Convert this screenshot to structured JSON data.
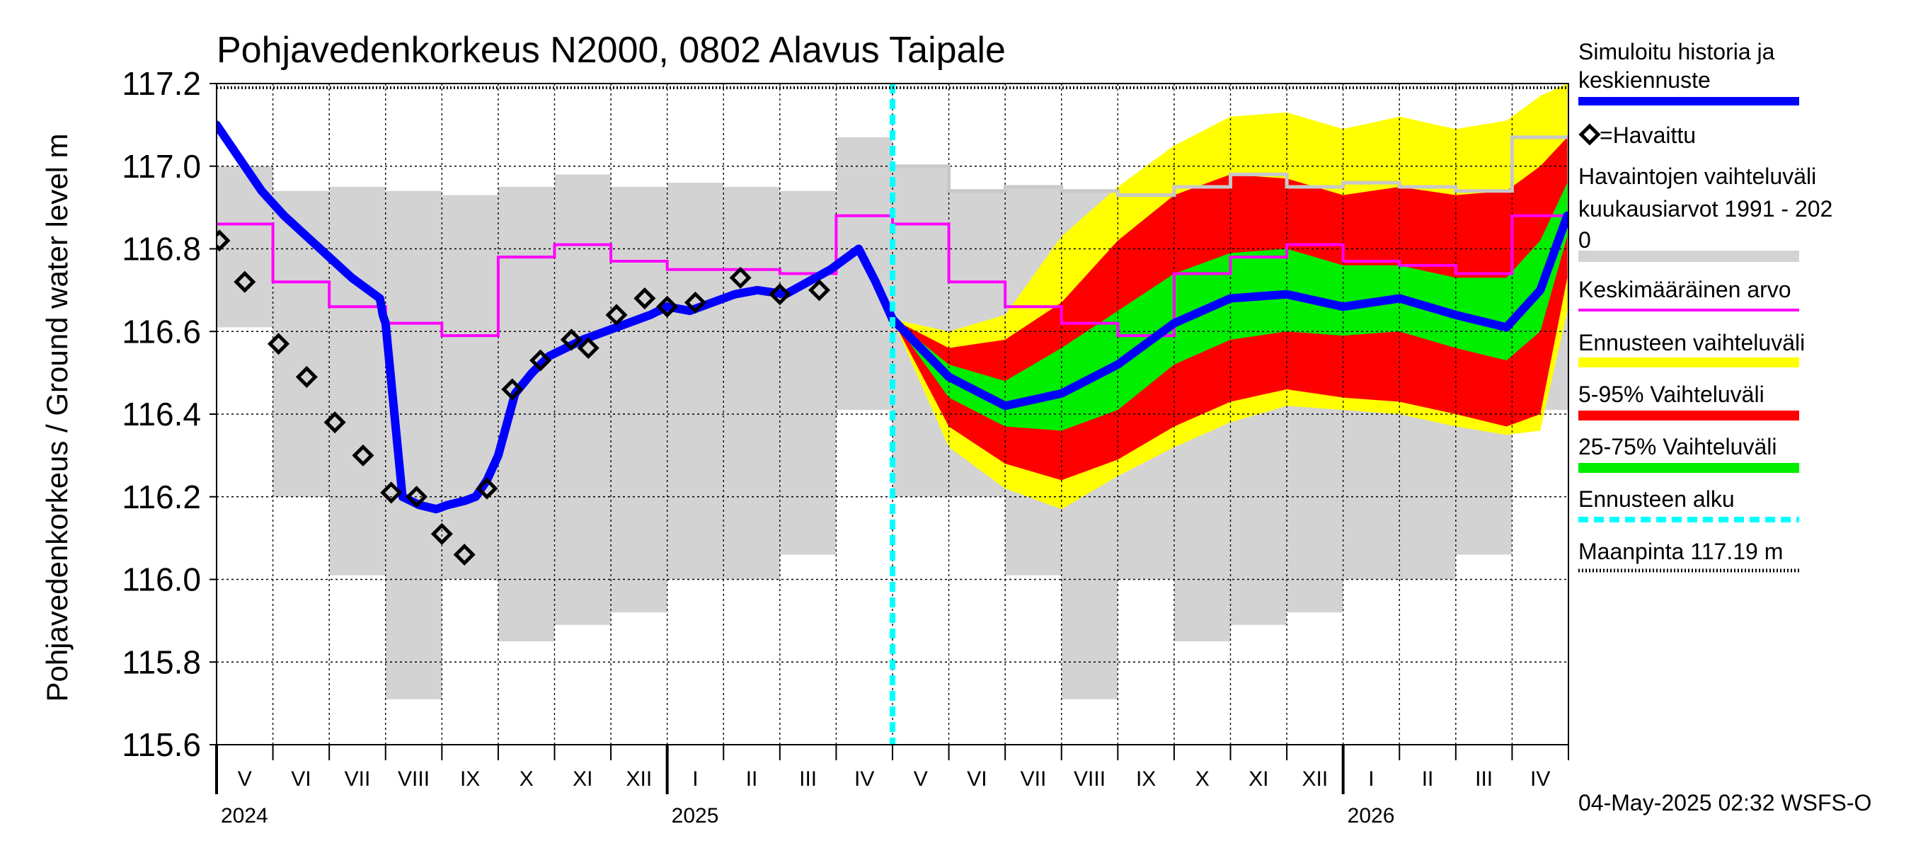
{
  "chart_data": {
    "type": "line",
    "title": "Pohjavedenkorkeus N2000, 0802 Alavus Taipale",
    "ylabel": "Pohjavedenkorkeus / Ground water level   m",
    "ylim": [
      115.6,
      117.2
    ],
    "yticks": [
      "115.6",
      "115.8",
      "116.0",
      "116.2",
      "116.4",
      "116.6",
      "116.8",
      "117.0",
      "117.2"
    ],
    "months": [
      "V",
      "VI",
      "VII",
      "VIII",
      "IX",
      "X",
      "XI",
      "XII",
      "I",
      "II",
      "III",
      "IV",
      "V",
      "VI",
      "VII",
      "VIII",
      "IX",
      "X",
      "XI",
      "XII",
      "I",
      "II",
      "III",
      "IV"
    ],
    "years": [
      {
        "label": "2024",
        "month_index": 0
      },
      {
        "label": "2025",
        "month_index": 8
      },
      {
        "label": "2026",
        "month_index": 20
      }
    ],
    "forecast_start_month": 12,
    "ground_surface": 117.19,
    "monthly_ranges": [
      {
        "min": 116.61,
        "max": 117.0
      },
      {
        "min": 116.2,
        "max": 116.94
      },
      {
        "min": 116.01,
        "max": 116.95
      },
      {
        "min": 115.71,
        "max": 116.94
      },
      {
        "min": 116.0,
        "max": 116.93
      },
      {
        "min": 115.85,
        "max": 116.95
      },
      {
        "min": 115.89,
        "max": 116.98
      },
      {
        "min": 115.92,
        "max": 116.95
      },
      {
        "min": 116.0,
        "max": 116.96
      },
      {
        "min": 116.0,
        "max": 116.95
      },
      {
        "min": 116.06,
        "max": 116.94
      },
      {
        "min": 116.41,
        "max": 117.07
      },
      {
        "min": 116.2,
        "max": 117.0
      },
      {
        "min": 116.2,
        "max": 116.94
      },
      {
        "min": 116.01,
        "max": 116.95
      },
      {
        "min": 115.71,
        "max": 116.94
      },
      {
        "min": 116.0,
        "max": 116.93
      },
      {
        "min": 115.85,
        "max": 116.95
      },
      {
        "min": 115.89,
        "max": 116.98
      },
      {
        "min": 115.92,
        "max": 116.95
      },
      {
        "min": 116.0,
        "max": 116.96
      },
      {
        "min": 116.0,
        "max": 116.95
      },
      {
        "min": 116.06,
        "max": 116.94
      },
      {
        "min": 116.41,
        "max": 117.07
      }
    ],
    "monthly_mean": [
      116.86,
      116.72,
      116.66,
      116.62,
      116.59,
      116.78,
      116.81,
      116.77,
      116.75,
      116.75,
      116.74,
      116.88,
      116.86,
      116.72,
      116.66,
      116.62,
      116.59,
      116.74,
      116.78,
      116.81,
      116.77,
      116.76,
      116.74,
      116.88
    ],
    "simulated": {
      "x": [
        0,
        0.4,
        0.8,
        1.2,
        1.6,
        2.0,
        2.4,
        2.9,
        2.95,
        3.0,
        3.3,
        3.6,
        3.9,
        4.1,
        4.4,
        4.6,
        4.8,
        5.0,
        5.3,
        5.6,
        5.9,
        6.2,
        6.5,
        6.9,
        7.3,
        7.7,
        8.0,
        8.4,
        8.8,
        9.2,
        9.6,
        10.1,
        10.5,
        10.9,
        11.1,
        11.4,
        11.7,
        12.0
      ],
      "y": [
        117.1,
        117.02,
        116.94,
        116.88,
        116.83,
        116.78,
        116.73,
        116.68,
        116.64,
        116.62,
        116.2,
        116.18,
        116.17,
        116.18,
        116.19,
        116.2,
        116.24,
        116.3,
        116.45,
        116.5,
        116.54,
        116.56,
        116.58,
        116.6,
        116.62,
        116.64,
        116.66,
        116.65,
        116.67,
        116.69,
        116.7,
        116.69,
        116.72,
        116.75,
        116.77,
        116.8,
        116.72,
        116.63
      ]
    },
    "observed": {
      "x": [
        0.05,
        0.5,
        1.1,
        1.6,
        2.1,
        2.6,
        3.1,
        3.55,
        4.0,
        4.4,
        4.8,
        5.25,
        5.75,
        6.3,
        6.6,
        7.1,
        7.6,
        8.0,
        8.5,
        9.3,
        10.0,
        10.7
      ],
      "y": [
        116.82,
        116.72,
        116.57,
        116.49,
        116.38,
        116.3,
        116.21,
        116.2,
        116.11,
        116.06,
        116.22,
        116.46,
        116.53,
        116.58,
        116.56,
        116.64,
        116.68,
        116.66,
        116.67,
        116.73,
        116.69,
        116.7
      ]
    },
    "forecast": {
      "x": [
        12.0,
        13.0,
        14.0,
        15.0,
        16.0,
        17.0,
        18.0,
        19.0,
        20.0,
        21.0,
        22.0,
        22.9,
        23.5,
        23.98
      ],
      "median": [
        116.63,
        116.49,
        116.42,
        116.45,
        116.52,
        116.62,
        116.68,
        116.69,
        116.66,
        116.68,
        116.64,
        116.61,
        116.7,
        116.88
      ],
      "p25": [
        116.63,
        116.44,
        116.37,
        116.36,
        116.41,
        116.52,
        116.58,
        116.6,
        116.59,
        116.6,
        116.56,
        116.53,
        116.6,
        116.83
      ],
      "p75": [
        116.63,
        116.52,
        116.48,
        116.56,
        116.65,
        116.74,
        116.79,
        116.8,
        116.76,
        116.76,
        116.73,
        116.73,
        116.82,
        116.96
      ],
      "p5": [
        116.63,
        116.37,
        116.28,
        116.24,
        116.29,
        116.37,
        116.43,
        116.46,
        116.44,
        116.43,
        116.4,
        116.37,
        116.4,
        116.73
      ],
      "p95": [
        116.63,
        116.56,
        116.58,
        116.67,
        116.82,
        116.93,
        116.98,
        116.97,
        116.93,
        116.95,
        116.93,
        116.94,
        117.0,
        117.07
      ],
      "min": [
        116.63,
        116.32,
        116.22,
        116.17,
        116.25,
        116.32,
        116.38,
        116.42,
        116.41,
        116.4,
        116.37,
        116.35,
        116.36,
        116.65
      ],
      "max": [
        116.63,
        116.6,
        116.64,
        116.83,
        116.95,
        117.05,
        117.12,
        117.13,
        117.09,
        117.12,
        117.09,
        117.11,
        117.17,
        117.2
      ]
    },
    "legend": [
      {
        "label": "Simuloitu historia ja keskiennuste",
        "color": "#0000ff",
        "kind": "thick-line"
      },
      {
        "label": "=Havaittu",
        "color": "#000000",
        "kind": "diamond"
      },
      {
        "label": "Havaintojen vaihteluväli kuukausiarvot 1991 - 2020",
        "color": "#d3d3d3",
        "kind": "band"
      },
      {
        "label": "Keskimääräinen arvo",
        "color": "#ff00ff",
        "kind": "line"
      },
      {
        "label": "Ennusteen vaihteluväli",
        "color": "#ffff00",
        "kind": "band"
      },
      {
        "label": "5-95% Vaihteluväli",
        "color": "#ff0000",
        "kind": "band"
      },
      {
        "label": "25-75% Vaihteluväli",
        "color": "#00ee00",
        "kind": "band"
      },
      {
        "label": "Ennusteen alku",
        "color": "#00ffff",
        "kind": "dashed"
      },
      {
        "label": "Maanpinta 117.19 m",
        "color": "#000000",
        "kind": "dotted"
      }
    ],
    "footer": "04-May-2025 02:32 WSFS-O",
    "colors": {
      "simulated": "#0000ff",
      "observed": "#000000",
      "history_band": "#d3d3d3",
      "mean": "#ff00ff",
      "forecast_range": "#ffff00",
      "p5_95": "#ff0000",
      "p25_75": "#00ee00",
      "forecast_start": "#00ffff"
    }
  }
}
